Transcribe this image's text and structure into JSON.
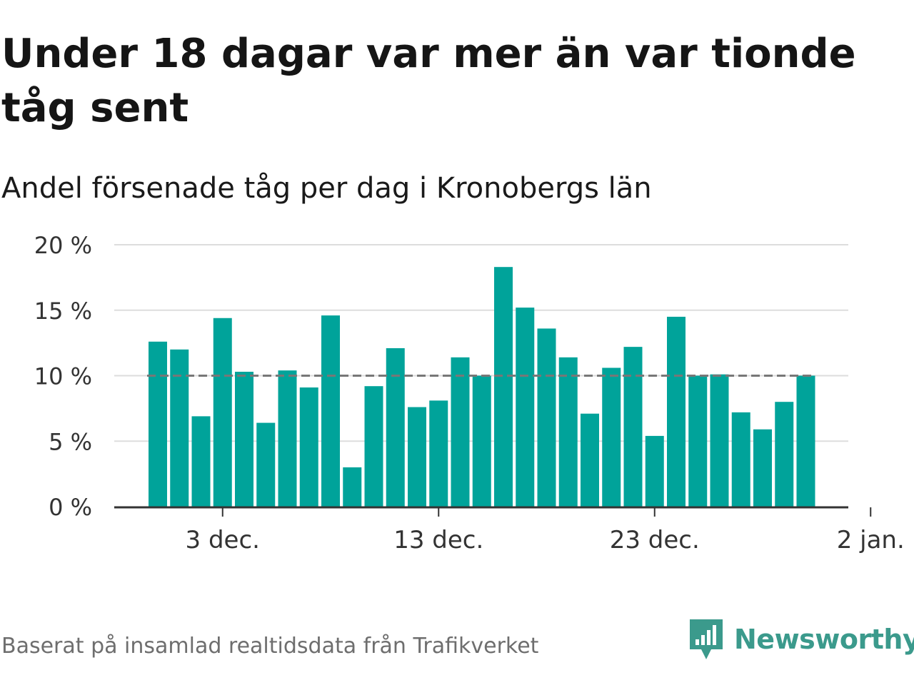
{
  "title": "Under 18 dagar var mer än var tionde tåg sent",
  "subtitle": "Andel försenade tåg per dag i Kronobergs län",
  "source": "Baserat på insamlad realtidsdata från Trafikverket",
  "brand": {
    "name": "Newsworthy",
    "logo_icon": "newsworthy-logo-icon",
    "color": "#3b9a8c"
  },
  "colors": {
    "bar": "#00a39a",
    "threshold": "#777777",
    "grid": "#dddddd",
    "axis": "#333333"
  },
  "chart_data": {
    "type": "bar",
    "x_start": "2018-11-30",
    "categories": [
      "30 nov.",
      "1 dec.",
      "2 dec.",
      "3 dec.",
      "4 dec.",
      "5 dec.",
      "6 dec.",
      "7 dec.",
      "8 dec.",
      "9 dec.",
      "10 dec.",
      "11 dec.",
      "12 dec.",
      "13 dec.",
      "14 dec.",
      "15 dec.",
      "16 dec.",
      "17 dec.",
      "18 dec.",
      "19 dec.",
      "20 dec.",
      "21 dec.",
      "22 dec.",
      "23 dec.",
      "24 dec.",
      "25 dec.",
      "26 dec.",
      "27 dec.",
      "28 dec.",
      "29 dec.",
      "30 dec.",
      "31 dec."
    ],
    "values": [
      12.6,
      12.0,
      6.9,
      14.4,
      10.3,
      6.4,
      10.4,
      9.1,
      14.6,
      3.0,
      9.2,
      12.1,
      7.6,
      8.1,
      11.4,
      10.0,
      18.3,
      15.2,
      13.6,
      11.4,
      7.1,
      10.6,
      12.2,
      5.4,
      14.5,
      10.0,
      10.1,
      7.2,
      5.9,
      8.0,
      10.0,
      0
    ],
    "threshold": 10,
    "ylim": [
      0,
      20
    ],
    "yticks": [
      {
        "value": 0,
        "label": "0 %"
      },
      {
        "value": 5,
        "label": "5 %"
      },
      {
        "value": 10,
        "label": "10 %"
      },
      {
        "value": 15,
        "label": "15 %"
      },
      {
        "value": 20,
        "label": "20 %"
      }
    ],
    "xticks": [
      {
        "index": 3,
        "label": "3 dec."
      },
      {
        "index": 13,
        "label": "13 dec."
      },
      {
        "index": 23,
        "label": "23 dec."
      },
      {
        "index": 33,
        "label": "2 jan."
      }
    ],
    "grid": true,
    "xlabel": "",
    "ylabel": ""
  }
}
